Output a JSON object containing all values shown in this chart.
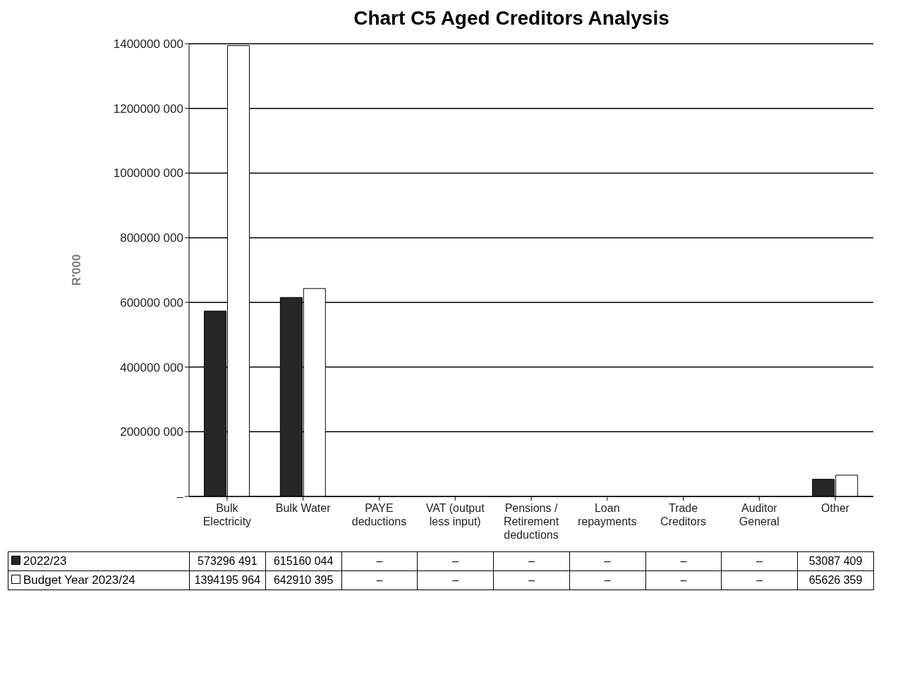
{
  "chart_data": {
    "type": "bar",
    "title": "Chart C5 Aged Creditors Analysis",
    "ylabel": "R'000",
    "categories": [
      "Bulk Electricity",
      "Bulk Water",
      "PAYE deductions",
      "VAT (output less input)",
      "Pensions / Retirement deductions",
      "Loan repayments",
      "Trade Creditors",
      "Auditor General",
      "Other"
    ],
    "series": [
      {
        "name": "2022/23",
        "color": "#262626",
        "values": [
          573296491,
          615160044,
          0,
          0,
          0,
          0,
          0,
          0,
          53087409
        ],
        "value_labels": [
          "573296 491",
          "615160 044",
          "–",
          "–",
          "–",
          "–",
          "–",
          "–",
          "53087 409"
        ]
      },
      {
        "name": "Budget Year 2023/24",
        "color": "#ffffff",
        "values": [
          1394195964,
          642910395,
          0,
          0,
          0,
          0,
          0,
          0,
          65626359
        ],
        "value_labels": [
          "1394195 964",
          "642910 395",
          "–",
          "–",
          "–",
          "–",
          "–",
          "–",
          "65626 359"
        ]
      }
    ],
    "ylim": [
      0,
      1400000000
    ],
    "yticks": [
      {
        "value": 0,
        "label": "–"
      },
      {
        "value": 200000000,
        "label": "200000 000"
      },
      {
        "value": 400000000,
        "label": "400000 000"
      },
      {
        "value": 600000000,
        "label": "600000 000"
      },
      {
        "value": 800000000,
        "label": "800000 000"
      },
      {
        "value": 1000000000,
        "label": "1000000 000"
      },
      {
        "value": 1200000000,
        "label": "1200000 000"
      },
      {
        "value": 1400000000,
        "label": "1400000 000"
      }
    ],
    "grid": "y",
    "legend": "bottom"
  }
}
